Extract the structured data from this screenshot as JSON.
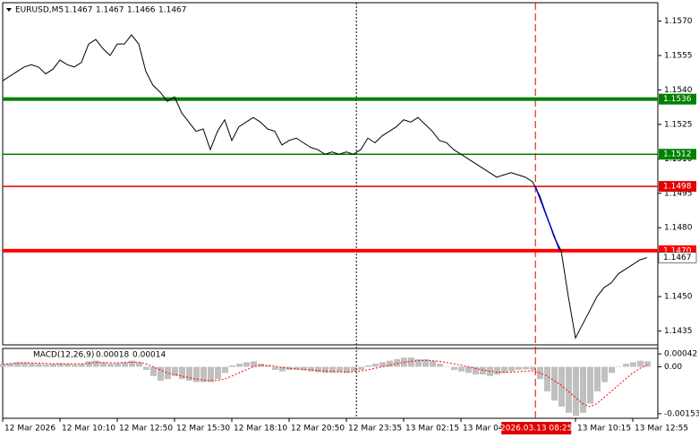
{
  "chart_data": [
    {
      "type": "line",
      "title": "EURUSD,M5",
      "ohlc": [
        1.1467,
        1.1467,
        1.1466,
        1.1467
      ],
      "color": "#000000",
      "values": [
        1.1544,
        1.1546,
        1.1548,
        1.155,
        1.1551,
        1.155,
        1.1547,
        1.1549,
        1.1553,
        1.1551,
        1.155,
        1.1552,
        1.156,
        1.1562,
        1.1558,
        1.1555,
        1.156,
        1.156,
        1.1564,
        1.156,
        1.1548,
        1.1542,
        1.1539,
        1.1535,
        1.1537,
        1.153,
        1.1526,
        1.1522,
        1.1523,
        1.1514,
        1.1522,
        1.1527,
        1.1518,
        1.1524,
        1.1526,
        1.1528,
        1.1526,
        1.1523,
        1.1522,
        1.1516,
        1.1518,
        1.1519,
        1.1517,
        1.1515,
        1.1514,
        1.1512,
        1.1513,
        1.1512,
        1.1513,
        1.1512,
        1.1514,
        1.1519,
        1.1517,
        1.152,
        1.1522,
        1.1524,
        1.1527,
        1.1526,
        1.1528,
        1.1525,
        1.1522,
        1.1518,
        1.1517,
        1.1514,
        1.1512,
        1.151,
        1.1508,
        1.1506,
        1.1504,
        1.1502,
        1.1503,
        1.1504,
        1.1503,
        1.1502,
        1.15,
        1.1494,
        1.1485,
        1.1476,
        1.147,
        1.145,
        1.1432,
        1.1438,
        1.1444,
        1.145,
        1.1454,
        1.1456,
        1.146,
        1.1462,
        1.1464,
        1.1466,
        1.1467
      ],
      "ylim": [
        1.1429,
        1.1578
      ],
      "yticks": [
        {
          "value": 1.157,
          "label": "1.1570"
        },
        1.1555,
        {
          "value": 1.154,
          "label": "1.1540"
        },
        1.1525,
        {
          "value": 1.151,
          "label": "1.1510"
        },
        1.1495,
        {
          "value": 1.148,
          "label": "1.1480"
        },
        {
          "value": 1.145,
          "label": "1.1450"
        },
        1.1435
      ],
      "xticks": [
        {
          "value": 0,
          "label": "12 Mar 2026"
        },
        {
          "value": 8,
          "label": "12 Mar 10:10"
        },
        {
          "value": 16,
          "label": "12 Mar 12:50"
        },
        {
          "value": 24,
          "label": "12 Mar 15:30"
        },
        {
          "value": 32,
          "label": "12 Mar 18:10"
        },
        {
          "value": 40,
          "label": "12 Mar 20:50"
        },
        {
          "value": 48,
          "label": "12 Mar 23:35"
        },
        {
          "value": 56,
          "label": "13 Mar 02:15"
        },
        {
          "value": 64,
          "label": "13 Mar 04:"
        },
        {
          "value": 80,
          "label": "13 Mar 10:15"
        },
        {
          "value": 88,
          "label": "13 Mar 12:55"
        }
      ],
      "hlines": [
        {
          "value": 1.1536,
          "color": "#008000",
          "thick": true
        },
        {
          "value": 1.1512,
          "color": "#008000",
          "thick": false
        },
        {
          "value": 1.1498,
          "color": "#e00000",
          "thick": false
        },
        {
          "value": 1.147,
          "label": "1.1470",
          "color": "#ff0000",
          "thick": true
        }
      ],
      "last_price": 1.1467,
      "trend_line": {
        "x": [
          74.4,
          77.8
        ],
        "y": [
          1.1498,
          1.147
        ],
        "color": "#0000cd"
      },
      "vlines": [
        {
          "x": 49.4,
          "color": "#000000",
          "style": "dotted"
        },
        {
          "x": 74.4,
          "color": "#e00000",
          "style": "dashed",
          "label": "2026.03.13 08:25"
        }
      ]
    },
    {
      "type": "macd",
      "title": "MACD(12,26,9)",
      "current": [
        0.00018,
        0.00014
      ],
      "ylim": [
        -0.00168,
        0.0006
      ],
      "yticks": [
        0.00042,
        {
          "value": 0,
          "label": "0.00"
        },
        -0.00153
      ],
      "histogram": {
        "color": "#c0c0c0",
        "values": [
          0.0001,
          0.00012,
          0.00015,
          0.00015,
          0.00012,
          0.0001,
          8e-05,
          0.0001,
          0.00012,
          0.0001,
          8e-05,
          0.0001,
          0.00018,
          0.0002,
          0.00015,
          0.0001,
          0.00012,
          0.00015,
          0.0002,
          0.00015,
          -0.0001,
          -0.0003,
          -0.00045,
          -0.0004,
          -0.0003,
          -0.0004,
          -0.00045,
          -0.0005,
          -0.0005,
          -0.0005,
          -0.0004,
          -0.0002,
          5e-05,
          0.0001,
          0.00015,
          0.00018,
          0.0001,
          5e-05,
          -0.0001,
          -0.00015,
          -0.0001,
          -0.0001,
          -0.00012,
          -0.00015,
          -0.00018,
          -0.0002,
          -0.0002,
          -0.00018,
          -0.0002,
          -0.00015,
          -0.0001,
          5e-05,
          0.0001,
          0.00015,
          0.0002,
          0.00025,
          0.0003,
          0.0003,
          0.00025,
          0.00025,
          0.0002,
          0.0001,
          0,
          -0.0001,
          -0.00015,
          -0.0002,
          -0.00025,
          -0.00025,
          -0.0003,
          -0.00025,
          -0.0002,
          -0.00015,
          -0.0001,
          -8e-05,
          -0.0001,
          -0.0004,
          -0.0008,
          -0.0011,
          -0.0013,
          -0.0015,
          -0.0016,
          -0.0015,
          -0.0012,
          -0.0008,
          -0.0005,
          -0.0002,
          0,
          0.0001,
          0.00015,
          0.0002,
          0.00018
        ]
      },
      "signal": {
        "color": "#ff0000",
        "values": [
          8e-05,
          0.0001,
          0.00012,
          0.00013,
          0.00013,
          0.00012,
          0.00011,
          0.0001,
          0.0001,
          0.0001,
          0.0001,
          0.0001,
          0.00012,
          0.00014,
          0.00014,
          0.00013,
          0.00013,
          0.00014,
          0.00015,
          0.00015,
          0.0001,
          0,
          -0.0001,
          -0.0002,
          -0.00025,
          -0.0003,
          -0.00035,
          -0.0004,
          -0.00043,
          -0.00045,
          -0.00044,
          -0.0004,
          -0.0003,
          -0.0002,
          -0.0001,
          0,
          5e-05,
          5e-05,
          2e-05,
          -2e-05,
          -5e-05,
          -7e-05,
          -8e-05,
          -0.0001,
          -0.00012,
          -0.00014,
          -0.00015,
          -0.00016,
          -0.00017,
          -0.00016,
          -0.00014,
          -0.0001,
          -5e-05,
          0,
          5e-05,
          0.0001,
          0.00015,
          0.00018,
          0.0002,
          0.00021,
          0.0002,
          0.00018,
          0.00014,
          0.0001,
          5e-05,
          0,
          -5e-05,
          -0.0001,
          -0.00014,
          -0.00017,
          -0.00018,
          -0.00018,
          -0.00016,
          -0.00014,
          -0.00013,
          -0.0002,
          -0.0003,
          -0.00045,
          -0.0006,
          -0.0008,
          -0.001,
          -0.0012,
          -0.0013,
          -0.0012,
          -0.001,
          -0.0008,
          -0.0006,
          -0.0004,
          -0.0002,
          -5e-05,
          5e-05
        ]
      }
    }
  ]
}
